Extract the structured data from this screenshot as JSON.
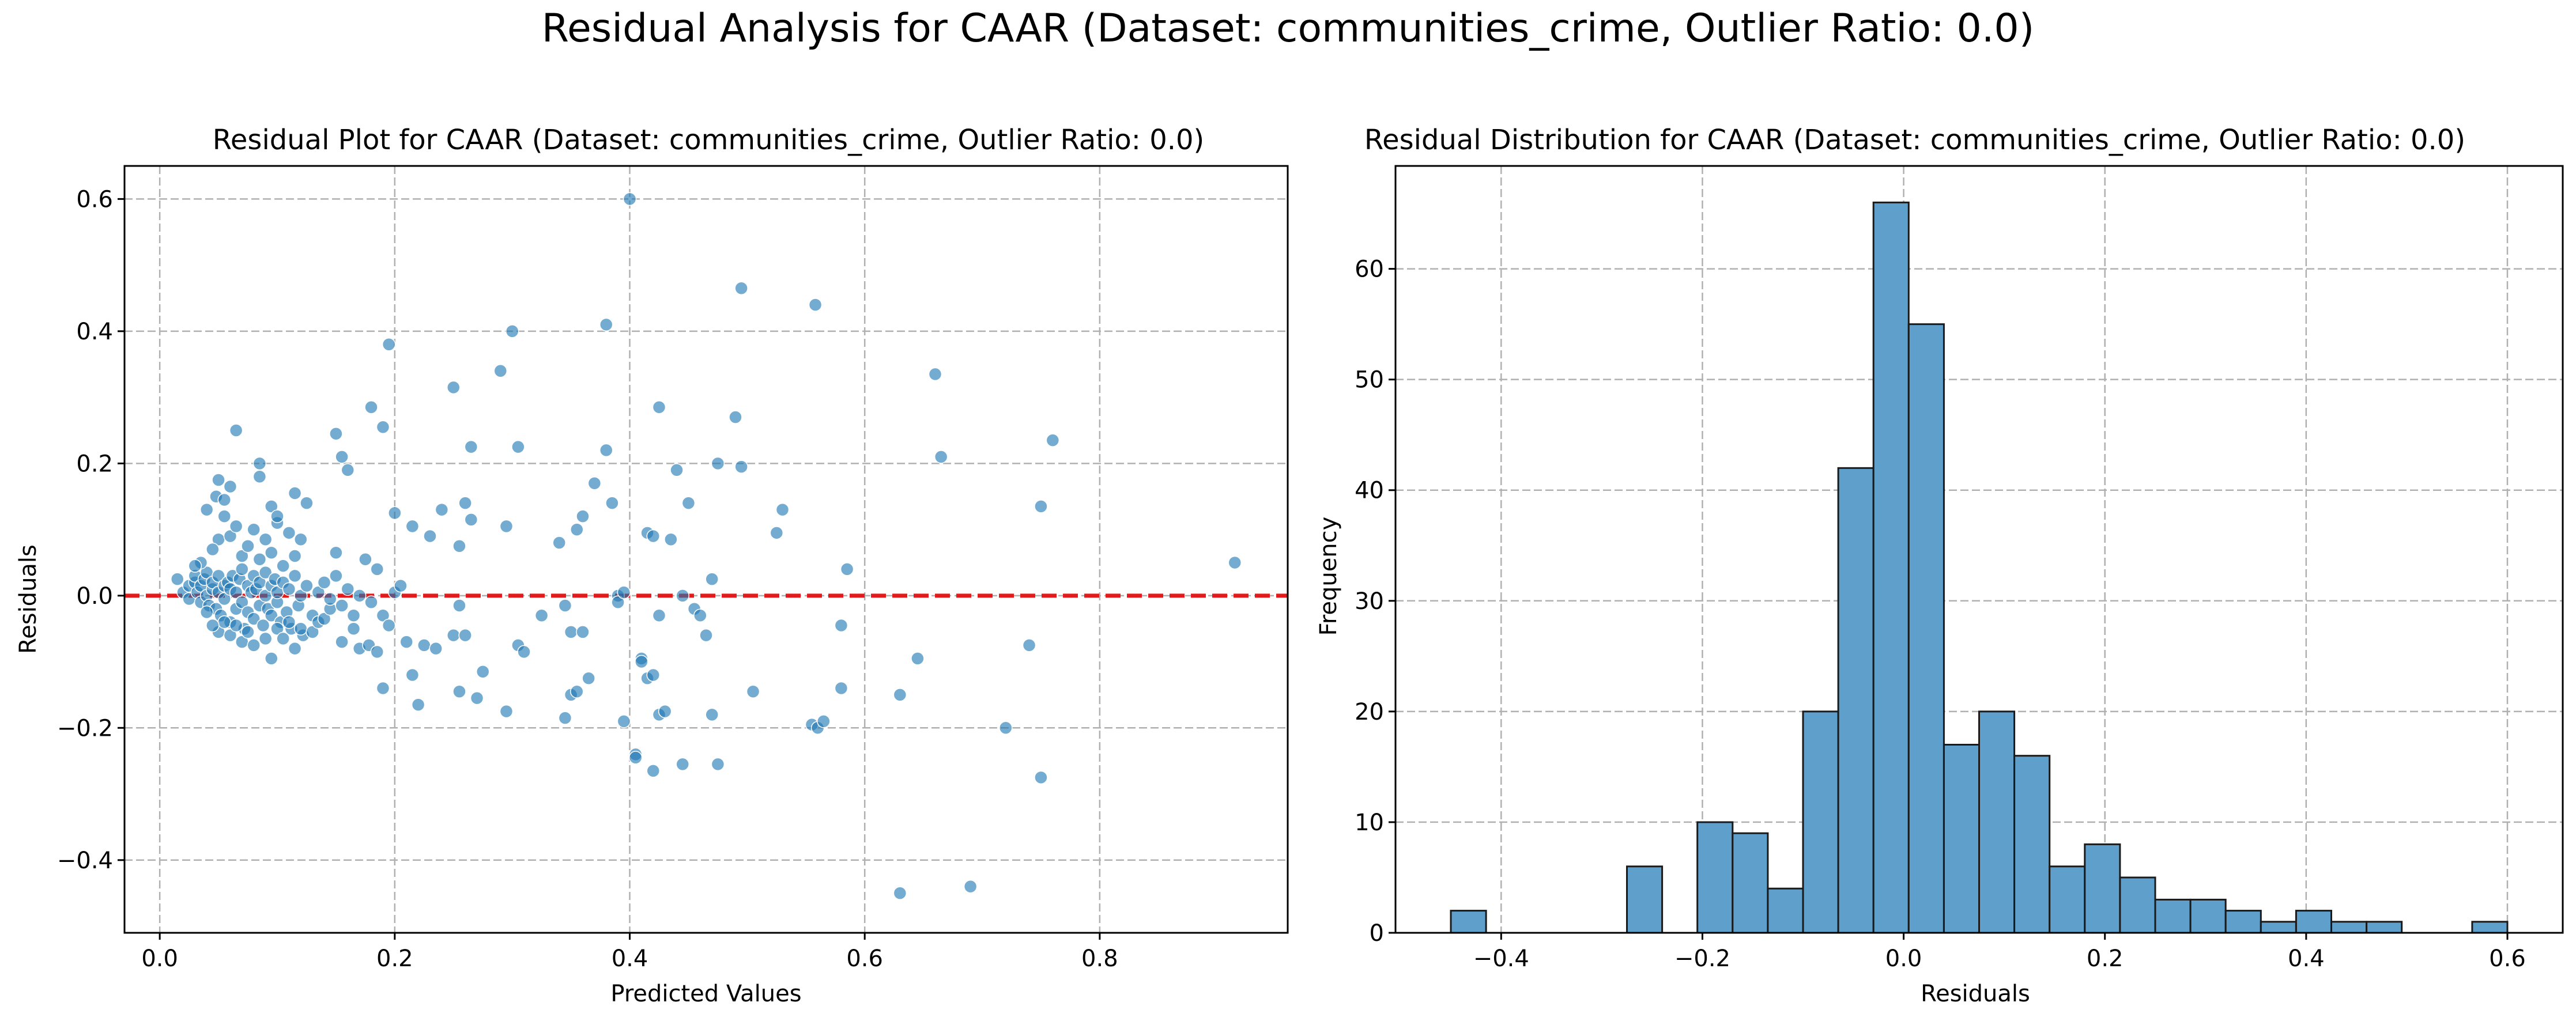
{
  "figure": {
    "suptitle": "Residual Analysis for CAAR (Dataset: communities_crime, Outlier Ratio: 0.0)"
  },
  "chart_data": [
    {
      "type": "scatter",
      "title": "Residual Plot for CAAR (Dataset: communities_crime, Outlier Ratio: 0.0)",
      "xlabel": "Predicted Values",
      "ylabel": "Residuals",
      "xlim": [
        -0.03,
        0.96
      ],
      "ylim": [
        -0.51,
        0.65
      ],
      "xticks": [
        "0.0",
        "0.2",
        "0.4",
        "0.6",
        "0.8"
      ],
      "yticks": [
        "−0.4",
        "−0.2",
        "0.0",
        "0.2",
        "0.4",
        "0.6"
      ],
      "grid": true,
      "reference_line": {
        "y": 0.0,
        "color": "#e31a1c",
        "style": "dashed"
      },
      "point_color": "#1f77b4",
      "points": [
        [
          0.015,
          0.025
        ],
        [
          0.02,
          0.005
        ],
        [
          0.025,
          0.015
        ],
        [
          0.025,
          -0.005
        ],
        [
          0.03,
          0.02
        ],
        [
          0.03,
          0.03
        ],
        [
          0.032,
          0.005
        ],
        [
          0.035,
          -0.01
        ],
        [
          0.035,
          0.015
        ],
        [
          0.038,
          0.025
        ],
        [
          0.04,
          0.0
        ],
        [
          0.04,
          0.035
        ],
        [
          0.042,
          -0.015
        ],
        [
          0.045,
          0.01
        ],
        [
          0.045,
          0.02
        ],
        [
          0.048,
          -0.02
        ],
        [
          0.05,
          0.005
        ],
        [
          0.05,
          0.03
        ],
        [
          0.052,
          -0.03
        ],
        [
          0.055,
          0.015
        ],
        [
          0.055,
          -0.005
        ],
        [
          0.058,
          0.02
        ],
        [
          0.06,
          -0.04
        ],
        [
          0.06,
          0.01
        ],
        [
          0.062,
          0.03
        ],
        [
          0.065,
          -0.02
        ],
        [
          0.065,
          0.005
        ],
        [
          0.068,
          0.025
        ],
        [
          0.07,
          -0.01
        ],
        [
          0.07,
          0.04
        ],
        [
          0.072,
          -0.05
        ],
        [
          0.075,
          0.015
        ],
        [
          0.075,
          -0.025
        ],
        [
          0.078,
          0.005
        ],
        [
          0.08,
          0.03
        ],
        [
          0.08,
          -0.035
        ],
        [
          0.082,
          0.01
        ],
        [
          0.085,
          -0.015
        ],
        [
          0.085,
          0.02
        ],
        [
          0.088,
          -0.045
        ],
        [
          0.09,
          0.0
        ],
        [
          0.09,
          0.035
        ],
        [
          0.092,
          -0.02
        ],
        [
          0.095,
          0.015
        ],
        [
          0.095,
          -0.03
        ],
        [
          0.098,
          0.025
        ],
        [
          0.1,
          -0.01
        ],
        [
          0.1,
          0.005
        ],
        [
          0.103,
          -0.04
        ],
        [
          0.105,
          0.02
        ],
        [
          0.108,
          -0.025
        ],
        [
          0.11,
          0.01
        ],
        [
          0.112,
          -0.05
        ],
        [
          0.115,
          0.03
        ],
        [
          0.118,
          -0.015
        ],
        [
          0.12,
          0.0
        ],
        [
          0.122,
          -0.06
        ],
        [
          0.125,
          0.015
        ],
        [
          0.13,
          -0.03
        ],
        [
          0.135,
          0.005
        ],
        [
          0.05,
          0.085
        ],
        [
          0.055,
          0.12
        ],
        [
          0.06,
          0.09
        ],
        [
          0.065,
          0.105
        ],
        [
          0.07,
          0.06
        ],
        [
          0.075,
          0.075
        ],
        [
          0.08,
          0.1
        ],
        [
          0.085,
          0.055
        ],
        [
          0.09,
          0.085
        ],
        [
          0.095,
          0.065
        ],
        [
          0.1,
          0.11
        ],
        [
          0.105,
          0.045
        ],
        [
          0.11,
          0.095
        ],
        [
          0.115,
          0.06
        ],
        [
          0.12,
          0.085
        ],
        [
          0.045,
          0.07
        ],
        [
          0.04,
          0.13
        ],
        [
          0.035,
          0.05
        ],
        [
          0.03,
          0.045
        ],
        [
          0.048,
          0.15
        ],
        [
          0.05,
          0.175
        ],
        [
          0.055,
          0.145
        ],
        [
          0.06,
          0.165
        ],
        [
          0.065,
          0.25
        ],
        [
          0.085,
          0.2
        ],
        [
          0.085,
          0.18
        ],
        [
          0.095,
          0.135
        ],
        [
          0.1,
          0.12
        ],
        [
          0.115,
          0.155
        ],
        [
          0.125,
          0.14
        ],
        [
          0.05,
          -0.055
        ],
        [
          0.055,
          -0.04
        ],
        [
          0.06,
          -0.06
        ],
        [
          0.065,
          -0.045
        ],
        [
          0.07,
          -0.07
        ],
        [
          0.075,
          -0.055
        ],
        [
          0.08,
          -0.075
        ],
        [
          0.09,
          -0.065
        ],
        [
          0.095,
          -0.095
        ],
        [
          0.1,
          -0.05
        ],
        [
          0.105,
          -0.065
        ],
        [
          0.11,
          -0.04
        ],
        [
          0.115,
          -0.08
        ],
        [
          0.12,
          -0.05
        ],
        [
          0.13,
          -0.055
        ],
        [
          0.135,
          -0.04
        ],
        [
          0.14,
          -0.035
        ],
        [
          0.145,
          -0.02
        ],
        [
          0.04,
          -0.025
        ],
        [
          0.045,
          -0.045
        ],
        [
          0.14,
          0.02
        ],
        [
          0.145,
          -0.005
        ],
        [
          0.15,
          0.03
        ],
        [
          0.155,
          -0.015
        ],
        [
          0.16,
          0.01
        ],
        [
          0.165,
          -0.03
        ],
        [
          0.17,
          0.0
        ],
        [
          0.175,
          0.055
        ],
        [
          0.18,
          -0.01
        ],
        [
          0.185,
          0.04
        ],
        [
          0.15,
          0.065
        ],
        [
          0.155,
          -0.07
        ],
        [
          0.165,
          -0.05
        ],
        [
          0.17,
          -0.08
        ],
        [
          0.178,
          -0.075
        ],
        [
          0.185,
          -0.085
        ],
        [
          0.19,
          -0.03
        ],
        [
          0.195,
          -0.045
        ],
        [
          0.2,
          0.005
        ],
        [
          0.205,
          0.015
        ],
        [
          0.15,
          0.245
        ],
        [
          0.155,
          0.21
        ],
        [
          0.16,
          0.19
        ],
        [
          0.18,
          0.285
        ],
        [
          0.19,
          0.255
        ],
        [
          0.195,
          0.38
        ],
        [
          0.2,
          0.125
        ],
        [
          0.215,
          0.105
        ],
        [
          0.23,
          0.09
        ],
        [
          0.24,
          0.13
        ],
        [
          0.19,
          -0.14
        ],
        [
          0.21,
          -0.07
        ],
        [
          0.215,
          -0.12
        ],
        [
          0.22,
          -0.165
        ],
        [
          0.225,
          -0.075
        ],
        [
          0.235,
          -0.08
        ],
        [
          0.25,
          -0.06
        ],
        [
          0.255,
          -0.145
        ],
        [
          0.26,
          -0.06
        ],
        [
          0.27,
          -0.155
        ],
        [
          0.25,
          0.315
        ],
        [
          0.255,
          0.075
        ],
        [
          0.26,
          0.14
        ],
        [
          0.265,
          0.115
        ],
        [
          0.265,
          0.225
        ],
        [
          0.275,
          -0.115
        ],
        [
          0.29,
          0.34
        ],
        [
          0.295,
          0.105
        ],
        [
          0.3,
          0.4
        ],
        [
          0.305,
          0.225
        ],
        [
          0.255,
          -0.015
        ],
        [
          0.295,
          -0.175
        ],
        [
          0.305,
          -0.075
        ],
        [
          0.31,
          -0.085
        ],
        [
          0.325,
          -0.03
        ],
        [
          0.34,
          0.08
        ],
        [
          0.345,
          -0.015
        ],
        [
          0.345,
          -0.185
        ],
        [
          0.35,
          -0.055
        ],
        [
          0.35,
          -0.15
        ],
        [
          0.355,
          -0.145
        ],
        [
          0.355,
          0.1
        ],
        [
          0.36,
          -0.055
        ],
        [
          0.36,
          0.12
        ],
        [
          0.365,
          -0.125
        ],
        [
          0.37,
          0.17
        ],
        [
          0.38,
          0.22
        ],
        [
          0.38,
          0.41
        ],
        [
          0.385,
          0.14
        ],
        [
          0.39,
          0.0
        ],
        [
          0.39,
          -0.01
        ],
        [
          0.395,
          -0.19
        ],
        [
          0.395,
          0.005
        ],
        [
          0.4,
          0.6
        ],
        [
          0.405,
          -0.24
        ],
        [
          0.405,
          -0.245
        ],
        [
          0.41,
          -0.095
        ],
        [
          0.41,
          -0.1
        ],
        [
          0.415,
          0.095
        ],
        [
          0.415,
          -0.125
        ],
        [
          0.42,
          -0.265
        ],
        [
          0.42,
          0.09
        ],
        [
          0.42,
          -0.12
        ],
        [
          0.425,
          -0.03
        ],
        [
          0.425,
          -0.18
        ],
        [
          0.425,
          0.285
        ],
        [
          0.43,
          -0.175
        ],
        [
          0.435,
          0.085
        ],
        [
          0.44,
          0.19
        ],
        [
          0.445,
          0.0
        ],
        [
          0.445,
          -0.255
        ],
        [
          0.45,
          0.14
        ],
        [
          0.455,
          -0.02
        ],
        [
          0.46,
          -0.03
        ],
        [
          0.465,
          -0.06
        ],
        [
          0.47,
          -0.18
        ],
        [
          0.47,
          0.025
        ],
        [
          0.475,
          0.2
        ],
        [
          0.475,
          -0.255
        ],
        [
          0.49,
          0.27
        ],
        [
          0.495,
          0.465
        ],
        [
          0.495,
          0.195
        ],
        [
          0.505,
          -0.145
        ],
        [
          0.525,
          0.095
        ],
        [
          0.53,
          0.13
        ],
        [
          0.555,
          -0.195
        ],
        [
          0.558,
          0.44
        ],
        [
          0.56,
          -0.2
        ],
        [
          0.565,
          -0.19
        ],
        [
          0.58,
          -0.14
        ],
        [
          0.58,
          -0.045
        ],
        [
          0.585,
          0.04
        ],
        [
          0.63,
          -0.15
        ],
        [
          0.63,
          -0.45
        ],
        [
          0.645,
          -0.095
        ],
        [
          0.66,
          0.335
        ],
        [
          0.665,
          0.21
        ],
        [
          0.69,
          -0.44
        ],
        [
          0.72,
          -0.2
        ],
        [
          0.74,
          -0.075
        ],
        [
          0.75,
          0.135
        ],
        [
          0.75,
          -0.275
        ],
        [
          0.76,
          0.235
        ],
        [
          0.915,
          0.05
        ]
      ]
    },
    {
      "type": "bar",
      "title": "Residual Distribution for CAAR (Dataset: communities_crime, Outlier Ratio: 0.0)",
      "xlabel": "Residuals",
      "ylabel": "Frequency",
      "xlim": [
        -0.505,
        0.655
      ],
      "ylim": [
        0,
        69.3
      ],
      "xticks": [
        "−0.4",
        "−0.2",
        "0.0",
        "0.2",
        "0.4",
        "0.6"
      ],
      "yticks": [
        "0",
        "10",
        "20",
        "30",
        "40",
        "50",
        "60"
      ],
      "grid": true,
      "bar_color": "#5f9fcc",
      "bin_start": -0.45,
      "bin_width": 0.035,
      "values": [
        2,
        0,
        0,
        0,
        0,
        6,
        0,
        10,
        9,
        4,
        20,
        42,
        66,
        55,
        17,
        20,
        16,
        6,
        8,
        5,
        3,
        3,
        2,
        1,
        2,
        1,
        1,
        0,
        0,
        1
      ]
    }
  ]
}
